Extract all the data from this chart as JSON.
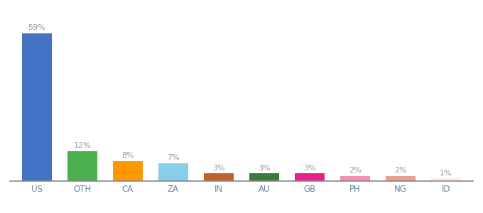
{
  "categories": [
    "US",
    "OTH",
    "CA",
    "ZA",
    "IN",
    "AU",
    "GB",
    "PH",
    "NG",
    "ID"
  ],
  "values": [
    59,
    12,
    8,
    7,
    3,
    3,
    3,
    2,
    2,
    1
  ],
  "labels": [
    "59%",
    "12%",
    "8%",
    "7%",
    "3%",
    "3%",
    "3%",
    "2%",
    "2%",
    "1%"
  ],
  "bar_colors": [
    "#4472c4",
    "#4caf50",
    "#ff9800",
    "#87ceeb",
    "#c0622a",
    "#3a7a3a",
    "#e91e8c",
    "#f48fb1",
    "#e8a090",
    "#f5f0dc"
  ],
  "background_color": "#ffffff",
  "label_color": "#999999",
  "tick_color": "#6688aa",
  "ylim": [
    0,
    68
  ],
  "bar_width": 0.65
}
